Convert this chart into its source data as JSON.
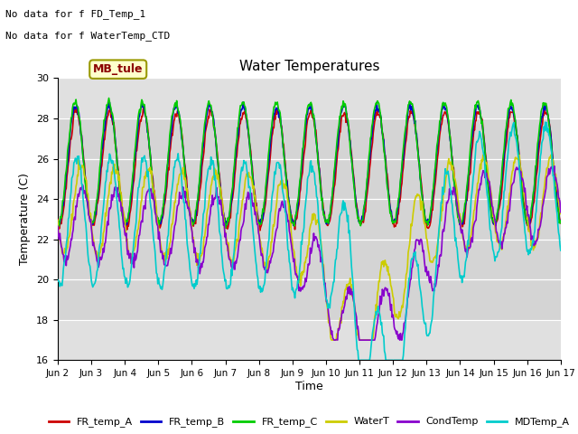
{
  "title": "Water Temperatures",
  "xlabel": "Time",
  "ylabel": "Temperature (C)",
  "ylim": [
    16,
    30
  ],
  "yticks": [
    16,
    18,
    20,
    22,
    24,
    26,
    28,
    30
  ],
  "shade_band": [
    18,
    28
  ],
  "annotations": [
    "No data for f FD_Temp_1",
    "No data for f WaterTemp_CTD"
  ],
  "mb_tule_label": "MB_tule",
  "x_tick_labels": [
    "Jun 2",
    "Jun 3",
    "Jun 4",
    "Jun 5",
    "Jun 6",
    "Jun 7",
    "Jun 8",
    "Jun 9",
    "Jun 10",
    "Jun 11",
    "Jun 12",
    "Jun 13",
    "Jun 14",
    "Jun 15",
    "Jun 16",
    "Jun 17"
  ],
  "legend_entries": [
    "FR_temp_A",
    "FR_temp_B",
    "FR_temp_C",
    "WaterT",
    "CondTemp",
    "MDTemp_A"
  ],
  "legend_colors": [
    "#cc0000",
    "#0000cc",
    "#00cc00",
    "#cccc00",
    "#8800cc",
    "#00cccc"
  ],
  "background_color": "#ffffff",
  "plot_bg_color": "#e0e0e0"
}
